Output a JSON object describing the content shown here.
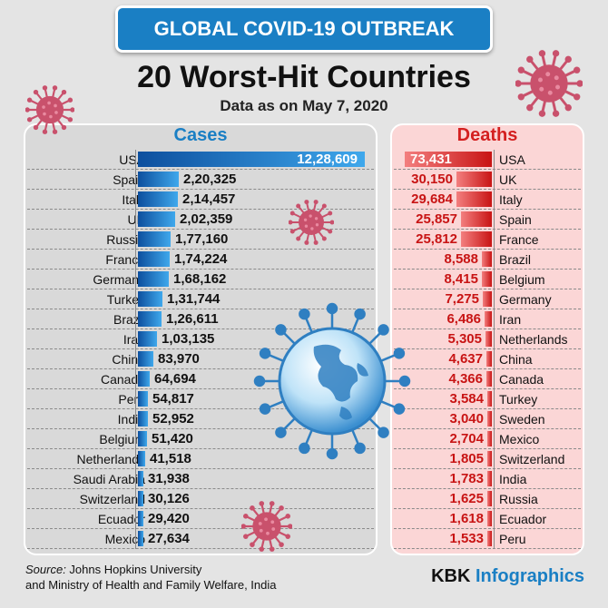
{
  "header": {
    "banner": "GLOBAL COVID-19 OUTBREAK",
    "title": "20 Worst-Hit Countries",
    "subtitle": "Data as on May 7, 2020"
  },
  "footer": {
    "source_label": "Source:",
    "source_line1": " Johns Hopkins University",
    "source_line2": "and Ministry of Health and Family Welfare, India",
    "brand_prefix": "KBK ",
    "brand_accent": "Infographics"
  },
  "colors": {
    "banner": "#1a7fc4",
    "cases": "#1a7fc4",
    "deaths": "#d42020",
    "virus": "#c9516c"
  },
  "chart_data": [
    {
      "type": "bar",
      "title": "Cases",
      "orientation": "horizontal",
      "categories": [
        "USA",
        "Spain",
        "Italy",
        "UK",
        "Russia",
        "France",
        "Germany",
        "Turkey",
        "Brazil",
        "Iran",
        "China",
        "Canada",
        "Peru",
        "India",
        "Belgium",
        "Netherlands",
        "Saudi Arabia",
        "Switzerland",
        "Ecuador",
        "Mexico"
      ],
      "values": [
        1228609,
        220325,
        214457,
        202359,
        177160,
        174224,
        168162,
        131744,
        126611,
        103135,
        83970,
        64694,
        54817,
        52952,
        51420,
        41518,
        31938,
        30126,
        29420,
        27634
      ],
      "value_labels": [
        "12,28,609",
        "2,20,325",
        "2,14,457",
        "2,02,359",
        "1,77,160",
        "1,74,224",
        "1,68,162",
        "1,31,744",
        "1,26,611",
        "1,03,135",
        "83,970",
        "64,694",
        "54,817",
        "52,952",
        "51,420",
        "41,518",
        "31,938",
        "30,126",
        "29,420",
        "27,634"
      ]
    },
    {
      "type": "bar",
      "title": "Deaths",
      "orientation": "horizontal",
      "categories": [
        "USA",
        "UK",
        "Italy",
        "Spain",
        "France",
        "Brazil",
        "Belgium",
        "Germany",
        "Iran",
        "Netherlands",
        "China",
        "Canada",
        "Turkey",
        "Sweden",
        "Mexico",
        "Switzerland",
        "India",
        "Russia",
        "Ecuador",
        "Peru"
      ],
      "values": [
        73431,
        30150,
        29684,
        25857,
        25812,
        8588,
        8415,
        7275,
        6486,
        5305,
        4637,
        4366,
        3584,
        3040,
        2704,
        1805,
        1783,
        1625,
        1618,
        1533
      ],
      "value_labels": [
        "73,431",
        "30,150",
        "29,684",
        "25,857",
        "25,812",
        "8,588",
        "8,415",
        "7,275",
        "6,486",
        "5,305",
        "4,637",
        "4,366",
        "3,584",
        "3,040",
        "2,704",
        "1,805",
        "1,783",
        "1,625",
        "1,618",
        "1,533"
      ]
    }
  ]
}
